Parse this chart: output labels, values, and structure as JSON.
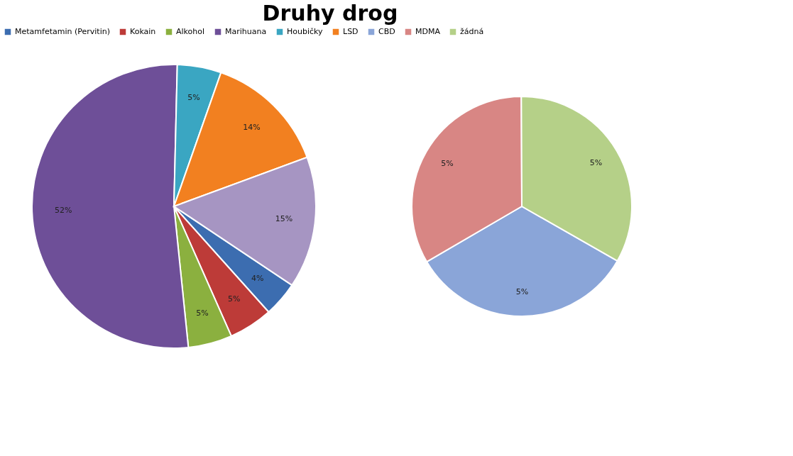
{
  "chart_data": [
    {
      "type": "pie",
      "title": "Druhy drog",
      "legend": "top",
      "categories": [
        "Metamfetamin (Pervitin)",
        "Kokain",
        "Alkohol",
        "Marihuana",
        "Houbičky",
        "LSD",
        null
      ],
      "values": [
        4,
        5,
        5,
        52,
        5,
        14,
        15
      ],
      "colors": [
        "#3c6db0",
        "#bd3b38",
        "#8bb03f",
        "#6e4f98",
        "#3aa6c2",
        "#f28020",
        "#a695c2"
      ],
      "value_labels": [
        "4%",
        "5%",
        "5%",
        "52%",
        "5%",
        "14%",
        "15%"
      ]
    },
    {
      "type": "pie",
      "legend": "top",
      "categories": [
        "CBD",
        "MDMA",
        "žádná"
      ],
      "values": [
        5,
        5,
        5
      ],
      "colors": [
        "#8aa5d8",
        "#d88684",
        "#b5d088"
      ],
      "value_labels": [
        "5%",
        "5%",
        "5%"
      ]
    }
  ]
}
